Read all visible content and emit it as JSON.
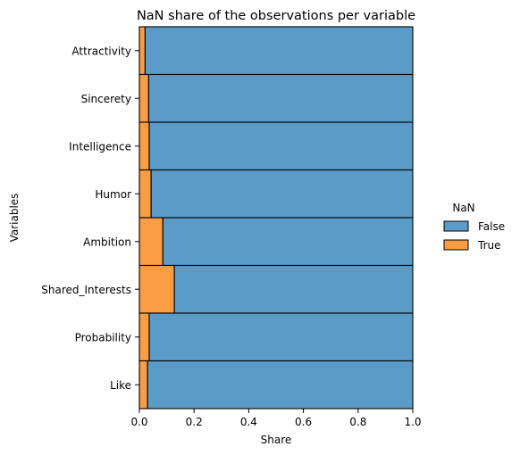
{
  "chart_data": {
    "type": "bar",
    "orientation": "horizontal",
    "stacked": true,
    "title": "NaN share of the observations per variable",
    "xlabel": "Share",
    "ylabel": "Variables",
    "xlim": [
      0.0,
      1.0
    ],
    "xticks": [
      "0.0",
      "0.2",
      "0.4",
      "0.6",
      "0.8",
      "1.0"
    ],
    "categories": [
      "Attractivity",
      "Sincerety",
      "Intelligence",
      "Humor",
      "Ambition",
      "Shared_Interests",
      "Probability",
      "Like"
    ],
    "series": [
      {
        "name": "True",
        "color": "#f99d45",
        "values": [
          0.021,
          0.034,
          0.036,
          0.043,
          0.086,
          0.128,
          0.036,
          0.03
        ]
      },
      {
        "name": "False",
        "color": "#5b9bc8",
        "values": [
          0.979,
          0.966,
          0.964,
          0.957,
          0.914,
          0.872,
          0.964,
          0.97
        ]
      }
    ],
    "legend": {
      "title": "NaN",
      "placement": "right",
      "entries": [
        "False",
        "True"
      ]
    },
    "grid": false
  }
}
